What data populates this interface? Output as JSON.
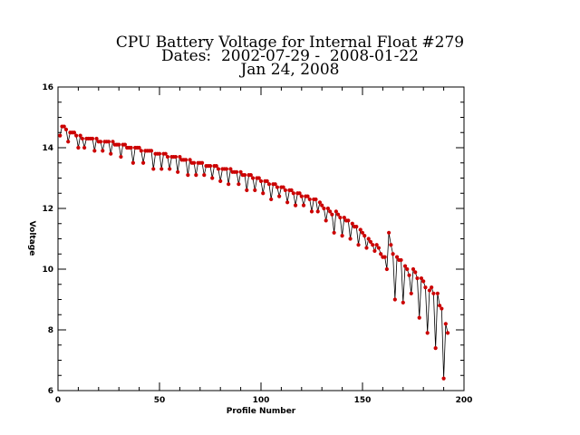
{
  "title_lines": [
    "CPU Battery Voltage for Internal Float #279",
    "Dates:  2002-07-29 -  2008-01-22",
    "Jan 24, 2008"
  ],
  "chart_data": {
    "type": "line",
    "xlabel": "Profile Number",
    "ylabel": "Voltage",
    "xlim": [
      0,
      200
    ],
    "ylim": [
      6,
      16
    ],
    "xticks": [
      0,
      50,
      100,
      150,
      200
    ],
    "yticks": [
      6,
      8,
      10,
      12,
      14,
      16
    ],
    "grid": false,
    "line_color": "#000000",
    "marker_color": "#cc0000",
    "series": [
      {
        "y": [
          14.4,
          14.7,
          14.7,
          14.6,
          14.2,
          14.5,
          14.5,
          14.5,
          14.4,
          14.0,
          14.4,
          14.3,
          14.0,
          14.3,
          14.3,
          14.3,
          14.3,
          13.9,
          14.3,
          14.2,
          14.2,
          13.9,
          14.2,
          14.2,
          14.2,
          13.8,
          14.2,
          14.1,
          14.1,
          14.1,
          13.7,
          14.1,
          14.1,
          14.0,
          14.0,
          14.0,
          13.5,
          14.0,
          14.0,
          14.0,
          13.9,
          13.5,
          13.9,
          13.9,
          13.9,
          13.9,
          13.3,
          13.8,
          13.8,
          13.8,
          13.3,
          13.8,
          13.8,
          13.7,
          13.3,
          13.7,
          13.7,
          13.7,
          13.2,
          13.7,
          13.6,
          13.6,
          13.6,
          13.1,
          13.6,
          13.5,
          13.5,
          13.1,
          13.5,
          13.5,
          13.5,
          13.1,
          13.4,
          13.4,
          13.4,
          13.0,
          13.4,
          13.4,
          13.3,
          12.9,
          13.3,
          13.3,
          13.3,
          12.8,
          13.3,
          13.2,
          13.2,
          13.2,
          12.8,
          13.2,
          13.1,
          13.1,
          12.6,
          13.1,
          13.1,
          13.0,
          12.6,
          13.0,
          13.0,
          12.9,
          12.5,
          12.9,
          12.9,
          12.8,
          12.3,
          12.8,
          12.8,
          12.7,
          12.4,
          12.7,
          12.7,
          12.6,
          12.2,
          12.6,
          12.6,
          12.5,
          12.1,
          12.5,
          12.5,
          12.4,
          12.1,
          12.4,
          12.4,
          12.3,
          11.9,
          12.3,
          12.3,
          11.9,
          12.2,
          12.1,
          12.0,
          11.6,
          12.0,
          11.9,
          11.8,
          11.2,
          11.9,
          11.8,
          11.7,
          11.1,
          11.7,
          11.6,
          11.6,
          11.0,
          11.5,
          11.4,
          11.4,
          10.8,
          11.3,
          11.2,
          11.1,
          10.7,
          11.0,
          10.9,
          10.8,
          10.6,
          10.8,
          10.7,
          10.5,
          10.4,
          10.4,
          10.0,
          11.2,
          10.8,
          10.5,
          9.0,
          10.4,
          10.3,
          10.3,
          8.9,
          10.1,
          10.0,
          9.8,
          9.2,
          10.0,
          9.9,
          9.7,
          8.4,
          9.7,
          9.6,
          9.4,
          7.9,
          9.3,
          9.4,
          9.2,
          7.4,
          9.2,
          8.8,
          8.7,
          6.4,
          8.2,
          7.9
        ]
      }
    ]
  }
}
